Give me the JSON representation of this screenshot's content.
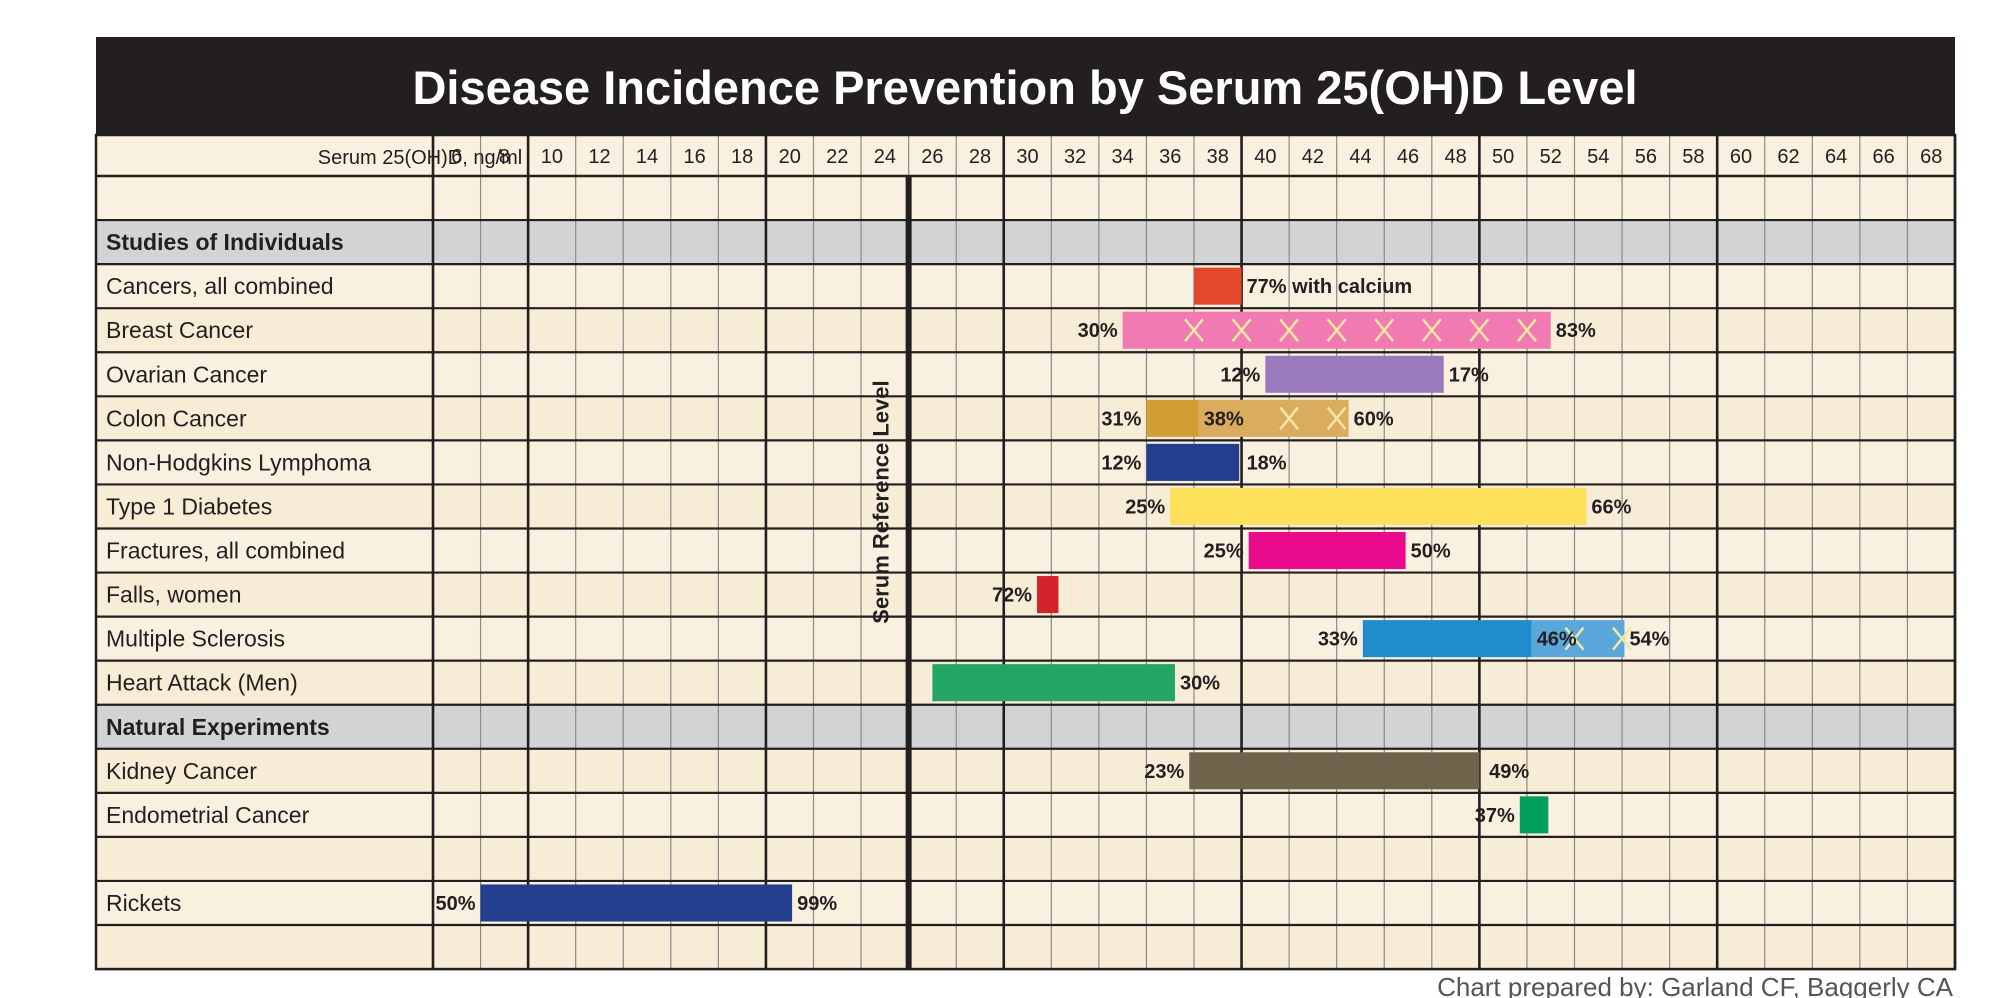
{
  "chart_data": {
    "type": "bar",
    "orientation": "horizontal-range",
    "title": "Disease Incidence Prevention by Serum 25(OH)D Level",
    "xlabel": "Serum 25(OH)D, ng/ml",
    "x_ticks": [
      6,
      8,
      10,
      12,
      14,
      16,
      18,
      20,
      22,
      24,
      26,
      28,
      30,
      32,
      34,
      36,
      38,
      40,
      42,
      44,
      46,
      48,
      50,
      52,
      54,
      56,
      58,
      60,
      62,
      64,
      66,
      68
    ],
    "reference_line": {
      "label": "Serum Reference Level",
      "x": 25
    },
    "credit": "Chart prepared by: Garland CF, Baggerly CA",
    "colors": {
      "header_bg": "#231f20",
      "row_bg_a": "#faf0df",
      "row_bg_b": "#f7ecd6",
      "section_bg": "#d2d3d5",
      "grid": "#8a8a8a"
    },
    "rows": [
      {
        "label": "",
        "type": "blank"
      },
      {
        "label": "Studies of Individuals",
        "type": "section"
      },
      {
        "label": "Cancers, all combined",
        "type": "data",
        "bars": [
          {
            "start": 37,
            "end": 39,
            "color": "#e2492b",
            "x_marks": []
          }
        ],
        "annotations": [
          {
            "text": "77% with calcium",
            "x": 39,
            "side": "right"
          }
        ]
      },
      {
        "label": "Breast Cancer",
        "type": "data",
        "bars": [
          {
            "start": 34,
            "end": 52,
            "color": "#f17ab2",
            "x_marks": [
              37,
              39,
              41,
              43,
              45,
              47,
              49,
              51
            ]
          }
        ],
        "annotations": [
          {
            "text": "30%",
            "x": 34,
            "side": "left"
          },
          {
            "text": "83%",
            "x": 52,
            "side": "right"
          }
        ]
      },
      {
        "label": "Ovarian Cancer",
        "type": "data",
        "bars": [
          {
            "start": 40,
            "end": 47.5,
            "color": "#9b79bd",
            "x_marks": []
          }
        ],
        "annotations": [
          {
            "text": "12%",
            "x": 40,
            "side": "left"
          },
          {
            "text": "17%",
            "x": 47.5,
            "side": "right"
          }
        ]
      },
      {
        "label": "Colon Cancer",
        "type": "data",
        "bars": [
          {
            "start": 35,
            "end": 37.2,
            "color": "#d39d34",
            "x_marks": []
          },
          {
            "start": 37.2,
            "end": 43.5,
            "color": "#d9ac5e",
            "x_marks": [
              41,
              43
            ]
          }
        ],
        "annotations": [
          {
            "text": "31%",
            "x": 35,
            "side": "left"
          },
          {
            "text": "38%",
            "x": 37.2,
            "side": "right"
          },
          {
            "text": "60%",
            "x": 43.5,
            "side": "right"
          }
        ]
      },
      {
        "label": "Non-Hodgkins Lymphoma",
        "type": "data",
        "bars": [
          {
            "start": 35,
            "end": 38.9,
            "color": "#233e8d",
            "x_marks": []
          }
        ],
        "annotations": [
          {
            "text": "12%",
            "x": 35,
            "side": "left"
          },
          {
            "text": "18%",
            "x": 39,
            "side": "right"
          }
        ]
      },
      {
        "label": "Type 1 Diabetes",
        "type": "data",
        "bars": [
          {
            "start": 36,
            "end": 53.5,
            "color": "#fde05a",
            "x_marks": []
          }
        ],
        "annotations": [
          {
            "text": "25%",
            "x": 36,
            "side": "left"
          },
          {
            "text": "66%",
            "x": 53.5,
            "side": "right"
          }
        ]
      },
      {
        "label": "Fractures, all combined",
        "type": "data",
        "bars": [
          {
            "start": 39.3,
            "end": 45.9,
            "color": "#ea0a8c",
            "x_marks": []
          }
        ],
        "annotations": [
          {
            "text": "25%",
            "x": 39.3,
            "side": "left"
          },
          {
            "text": "50%",
            "x": 45.9,
            "side": "right"
          }
        ]
      },
      {
        "label": "Falls, women",
        "type": "data",
        "bars": [
          {
            "start": 30.4,
            "end": 31.3,
            "color": "#d2232a",
            "x_marks": []
          }
        ],
        "annotations": [
          {
            "text": "72%",
            "x": 30.4,
            "side": "left"
          }
        ]
      },
      {
        "label": "Multiple Sclerosis",
        "type": "data",
        "bars": [
          {
            "start": 44.1,
            "end": 51.2,
            "color": "#1f8ccc",
            "x_marks": []
          },
          {
            "start": 51.2,
            "end": 55.1,
            "color": "#5aa7dc",
            "x_marks": [
              53,
              55
            ]
          }
        ],
        "annotations": [
          {
            "text": "33%",
            "x": 44.1,
            "side": "left"
          },
          {
            "text": "46%",
            "x": 51.2,
            "side": "right"
          },
          {
            "text": "54%",
            "x": 55.1,
            "side": "right"
          }
        ]
      },
      {
        "label": "Heart Attack (Men)",
        "type": "data",
        "bars": [
          {
            "start": 26,
            "end": 36.2,
            "color": "#23a566",
            "x_marks": []
          }
        ],
        "annotations": [
          {
            "text": "30%",
            "x": 36.2,
            "side": "right"
          }
        ]
      },
      {
        "label": "Natural Experiments",
        "type": "section"
      },
      {
        "label": "Kidney Cancer",
        "type": "data",
        "bars": [
          {
            "start": 36.8,
            "end": 49,
            "color": "#6e634b",
            "x_marks": []
          }
        ],
        "annotations": [
          {
            "text": "23%",
            "x": 36.8,
            "side": "left"
          },
          {
            "text": "49%",
            "x": 49.2,
            "side": "right"
          }
        ]
      },
      {
        "label": "Endometrial Cancer",
        "type": "data",
        "bars": [
          {
            "start": 50.7,
            "end": 51.9,
            "color": "#00a05a",
            "x_marks": []
          }
        ],
        "annotations": [
          {
            "text": "37%",
            "x": 50.7,
            "side": "left"
          }
        ]
      },
      {
        "label": "",
        "type": "blank"
      },
      {
        "label": "Rickets",
        "type": "data",
        "bars": [
          {
            "start": 7,
            "end": 20.1,
            "color": "#233e8d",
            "x_marks": []
          }
        ],
        "annotations": [
          {
            "text": "50%",
            "x": 7,
            "side": "left"
          },
          {
            "text": "99%",
            "x": 20.1,
            "side": "right"
          }
        ]
      },
      {
        "label": "",
        "type": "blank"
      }
    ]
  }
}
